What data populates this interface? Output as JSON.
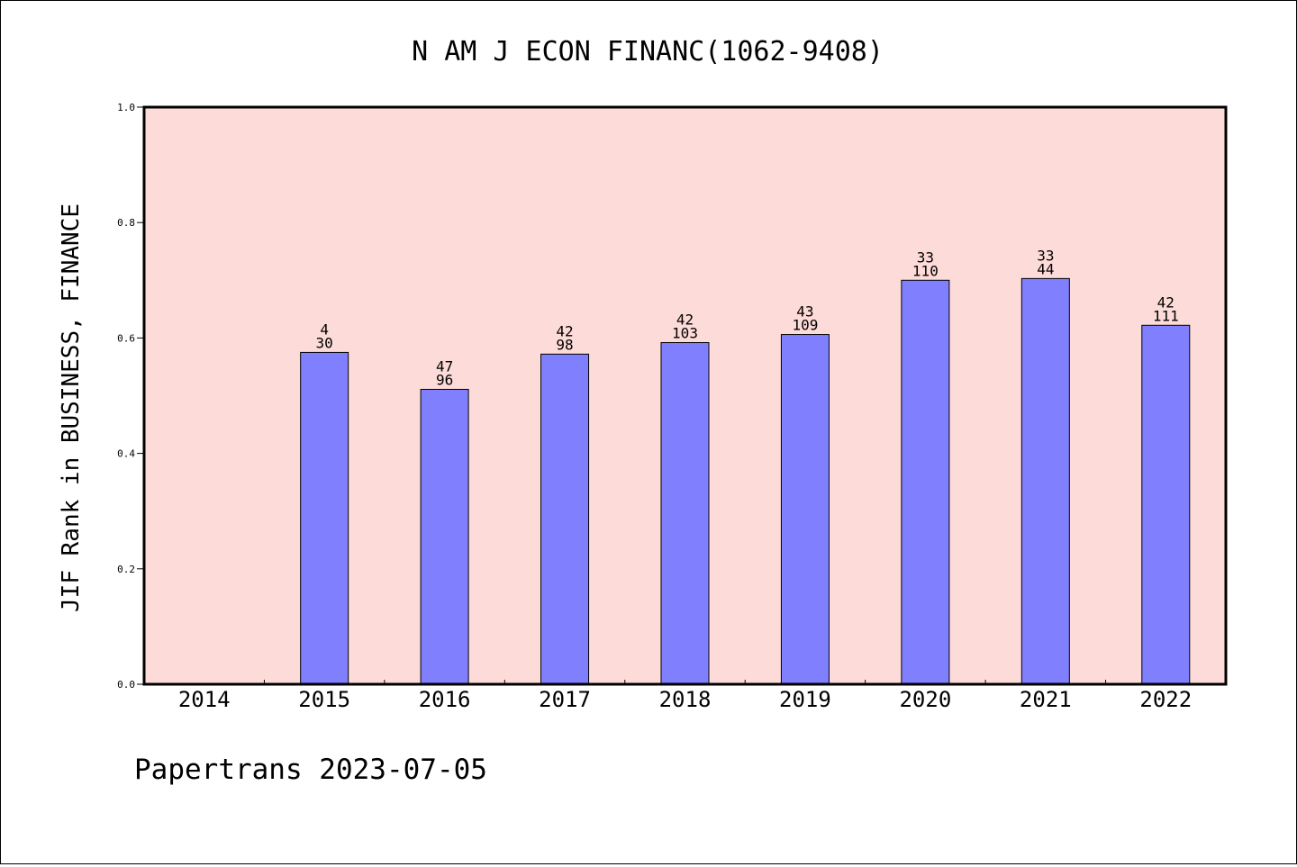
{
  "chart_data": {
    "type": "bar",
    "title": "N AM J ECON FINANC(1062-9408)",
    "ylabel": "JIF Rank in BUSINESS, FINANCE",
    "xlabel": "",
    "footer": "Papertrans 2023-07-05",
    "ylim": [
      0,
      1.0
    ],
    "yticks": [
      "0.0",
      "0.2",
      "0.4",
      "0.6",
      "0.8",
      "1.0"
    ],
    "categories": [
      "2014",
      "2015",
      "2016",
      "2017",
      "2018",
      "2019",
      "2020",
      "2021",
      "2022"
    ],
    "values": [
      null,
      0.575,
      0.511,
      0.572,
      0.592,
      0.606,
      0.7,
      0.703,
      0.622
    ],
    "labels_top": [
      "",
      "4",
      "47",
      "42",
      "42",
      "43",
      "33",
      "33",
      "42"
    ],
    "labels_bottom": [
      "",
      "30",
      "96",
      "98",
      "103",
      "109",
      "110",
      "44",
      "111"
    ],
    "grid": false,
    "colors": {
      "bar_fill": "#8080ff",
      "plot_bg": "#fddbd8",
      "frame": "#000000"
    }
  }
}
